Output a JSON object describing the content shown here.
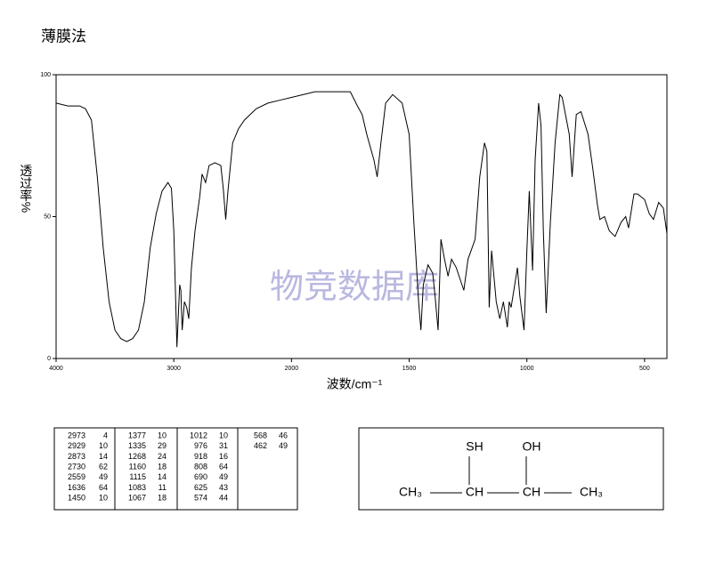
{
  "chart_data": {
    "type": "line",
    "title": "薄膜法",
    "watermark": "物竞数据库",
    "x_label": "波数/cm⁻¹",
    "y_label": "透过率%",
    "xlim": [
      4000,
      405
    ],
    "ylim": [
      0,
      100
    ],
    "xticks": [
      4000,
      3000,
      2000,
      1500,
      1000,
      500
    ],
    "yticks": [
      0,
      50,
      100
    ],
    "series": [
      {
        "color": "#000000",
        "x": [
          4000,
          3900,
          3800,
          3750,
          3700,
          3650,
          3600,
          3550,
          3500,
          3450,
          3400,
          3350,
          3300,
          3250,
          3200,
          3150,
          3100,
          3050,
          3020,
          3000,
          2973,
          2950,
          2940,
          2929,
          2910,
          2890,
          2873,
          2850,
          2820,
          2780,
          2760,
          2730,
          2700,
          2650,
          2600,
          2580,
          2559,
          2540,
          2500,
          2450,
          2400,
          2300,
          2200,
          2100,
          2000,
          1900,
          1800,
          1750,
          1720,
          1700,
          1680,
          1650,
          1636,
          1620,
          1600,
          1570,
          1530,
          1500,
          1480,
          1460,
          1450,
          1440,
          1420,
          1400,
          1390,
          1377,
          1365,
          1350,
          1335,
          1320,
          1300,
          1268,
          1250,
          1220,
          1200,
          1180,
          1170,
          1160,
          1150,
          1140,
          1130,
          1115,
          1100,
          1083,
          1075,
          1067,
          1040,
          1030,
          1012,
          1000,
          990,
          976,
          965,
          950,
          940,
          930,
          918,
          900,
          880,
          860,
          850,
          820,
          808,
          790,
          770,
          740,
          720,
          700,
          690,
          670,
          650,
          625,
          600,
          580,
          568,
          545,
          530,
          500,
          480,
          462,
          440,
          420,
          405
        ],
        "values": [
          90,
          89,
          89,
          88,
          84,
          64,
          39,
          20,
          10,
          7,
          6,
          7,
          10,
          20,
          39,
          51,
          59,
          62,
          60,
          45,
          4,
          26,
          24,
          10,
          20,
          18,
          14,
          32,
          45,
          57,
          65,
          62,
          68,
          69,
          68,
          60,
          49,
          59,
          76,
          81,
          84,
          88,
          90,
          91,
          92,
          94,
          94,
          94,
          89,
          86,
          79,
          70,
          64,
          76,
          90,
          93,
          90,
          79,
          48,
          20,
          10,
          26,
          33,
          30,
          22,
          10,
          42,
          35,
          29,
          35,
          32,
          24,
          35,
          42,
          64,
          76,
          73,
          18,
          38,
          29,
          20,
          14,
          20,
          11,
          20,
          18,
          32,
          22,
          10,
          38,
          59,
          31,
          70,
          90,
          82,
          45,
          16,
          48,
          76,
          93,
          92,
          79,
          64,
          86,
          87,
          79,
          67,
          54,
          49,
          50,
          45,
          43,
          48,
          50,
          46,
          58,
          58,
          56,
          51,
          49,
          55,
          53,
          44
        ]
      }
    ],
    "grid": false
  },
  "peak_table": [
    [
      [
        2973,
        4
      ],
      [
        2929,
        10
      ],
      [
        2873,
        14
      ],
      [
        2730,
        62
      ],
      [
        2559,
        49
      ],
      [
        1636,
        64
      ],
      [
        1450,
        10
      ]
    ],
    [
      [
        1377,
        10
      ],
      [
        1335,
        29
      ],
      [
        1268,
        24
      ],
      [
        1160,
        18
      ],
      [
        1115,
        14
      ],
      [
        1083,
        11
      ],
      [
        1067,
        18
      ]
    ],
    [
      [
        1012,
        10
      ],
      [
        976,
        31
      ],
      [
        918,
        16
      ],
      [
        808,
        64
      ],
      [
        690,
        49
      ],
      [
        625,
        43
      ],
      [
        574,
        44
      ]
    ],
    [
      [
        568,
        46
      ],
      [
        462,
        49
      ]
    ]
  ],
  "structure": {
    "substituents": [
      "SH",
      "OH"
    ],
    "chain": [
      "CH₃",
      "CH",
      "CH",
      "CH₃"
    ]
  }
}
